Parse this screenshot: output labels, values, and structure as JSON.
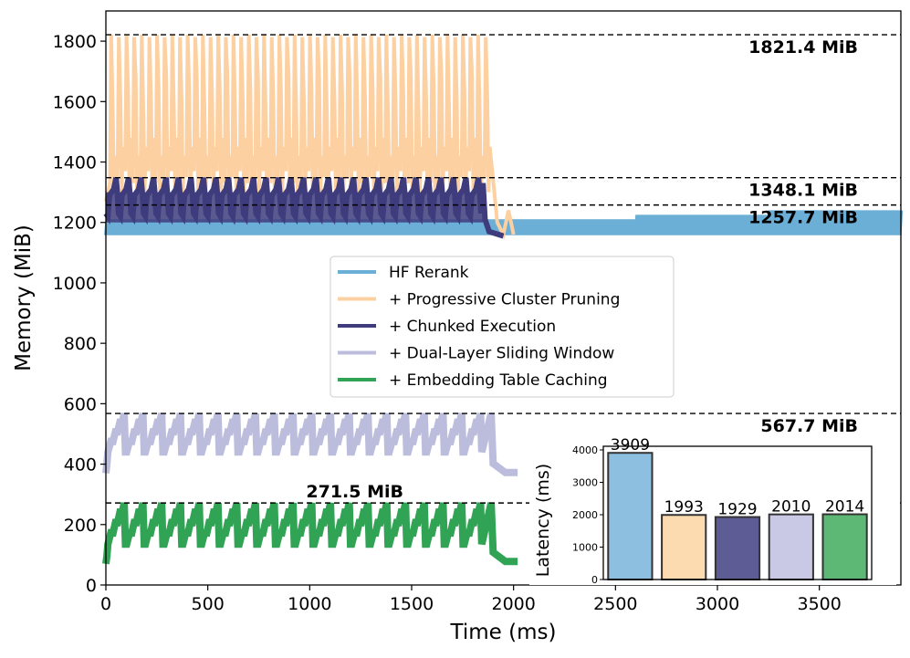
{
  "chart_data": [
    {
      "type": "line",
      "xlabel": "Time (ms)",
      "ylabel": "Memory (MiB)",
      "xlim": [
        0,
        3900
      ],
      "ylim": [
        0,
        1900
      ],
      "xticks": [
        0,
        500,
        1000,
        1500,
        2000,
        2500,
        3000,
        3500
      ],
      "yticks": [
        0,
        200,
        400,
        600,
        800,
        1000,
        1200,
        1400,
        1600,
        1800
      ],
      "grid": false,
      "legend_position": "center",
      "reference_lines": [
        {
          "value": 1821.4,
          "label": "1821.4 MiB"
        },
        {
          "value": 1348.1,
          "label": "1348.1 MiB"
        },
        {
          "value": 1257.7,
          "label": "1257.7 MiB"
        },
        {
          "value": 567.7,
          "label": "567.7 MiB"
        },
        {
          "value": 271.5,
          "label": "271.5 MiB"
        }
      ],
      "series": [
        {
          "name": "HF Rerank",
          "color": "#6baed6",
          "x_end": 3900,
          "min": 1150,
          "max": 1240,
          "peak": 1240,
          "segments": [
            {
              "x_start": 0,
              "x_end": 1900,
              "low": 1150,
              "high": 1210
            },
            {
              "x_start": 1900,
              "x_end": 2600,
              "low": 1150,
              "high": 1210
            },
            {
              "x_start": 2600,
              "x_end": 3250,
              "low": 1150,
              "high": 1225
            },
            {
              "x_start": 3250,
              "x_end": 3900,
              "low": 1150,
              "high": 1240
            }
          ]
        },
        {
          "name": "+ Progressive Cluster Pruning",
          "color": "#fdd0a2",
          "x_start": 0,
          "x_end": 2000,
          "min": 1150,
          "max": 1821.4,
          "peak": 1821.4
        },
        {
          "name": "+ Chunked Execution",
          "color": "#3f3c7d",
          "x_start": 0,
          "x_end": 1950,
          "min": 1150,
          "max": 1348.1,
          "peak": 1348.1
        },
        {
          "name": "+ Dual-Layer Sliding Window",
          "color": "#bcbddc",
          "x_start": 0,
          "x_end": 2020,
          "min": 370,
          "max": 567.7,
          "peak": 567.7
        },
        {
          "name": "+ Embedding Table Caching",
          "color": "#31a354",
          "x_start": 0,
          "x_end": 2020,
          "min": 70,
          "max": 271.5,
          "peak": 271.5
        }
      ]
    },
    {
      "type": "bar",
      "ylabel": "Latency (ms)",
      "ylim": [
        0,
        4000
      ],
      "yticks": [
        0,
        1000,
        2000,
        3000,
        4000
      ],
      "categories": [
        "HF Rerank",
        "+ Progressive Cluster Pruning",
        "+ Chunked Execution",
        "+ Dual-Layer Sliding Window",
        "+ Embedding Table Caching"
      ],
      "values": [
        3909,
        1993,
        1929,
        2010,
        2014
      ],
      "colors": [
        "#8dbfe0",
        "#fddbb0",
        "#5e5c95",
        "#c9c9e6",
        "#5db876"
      ]
    }
  ]
}
